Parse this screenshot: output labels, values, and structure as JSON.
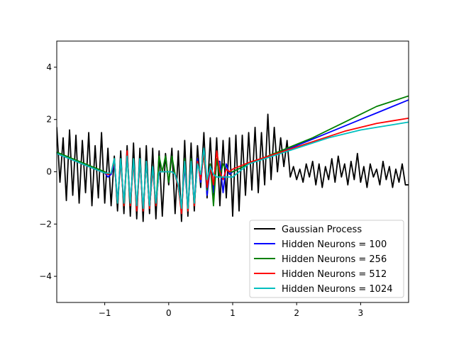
{
  "chart_data": {
    "type": "line",
    "xlim": [
      -1.75,
      3.75
    ],
    "ylim": [
      -5,
      5
    ],
    "x_ticks": [
      -1,
      0,
      1,
      2,
      3
    ],
    "x_tick_labels": [
      "−1",
      "0",
      "1",
      "2",
      "3"
    ],
    "y_ticks": [
      -4,
      -2,
      0,
      2,
      4
    ],
    "y_tick_labels": [
      "−4",
      "−2",
      "0",
      "2",
      "4"
    ],
    "grid": false,
    "legend_position": "lower-right",
    "series": [
      {
        "name": "Gaussian Process",
        "color": "#000000",
        "x": [
          -1.75,
          -1.7,
          -1.65,
          -1.6,
          -1.55,
          -1.5,
          -1.45,
          -1.4,
          -1.35,
          -1.3,
          -1.25,
          -1.2,
          -1.15,
          -1.1,
          -1.05,
          -1.0,
          -0.95,
          -0.9,
          -0.85,
          -0.8,
          -0.75,
          -0.7,
          -0.65,
          -0.6,
          -0.55,
          -0.5,
          -0.45,
          -0.4,
          -0.35,
          -0.3,
          -0.25,
          -0.2,
          -0.15,
          -0.1,
          -0.05,
          0.0,
          0.05,
          0.1,
          0.15,
          0.2,
          0.25,
          0.3,
          0.35,
          0.4,
          0.45,
          0.5,
          0.55,
          0.6,
          0.65,
          0.7,
          0.75,
          0.8,
          0.85,
          0.9,
          0.95,
          1.0,
          1.05,
          1.1,
          1.15,
          1.2,
          1.25,
          1.3,
          1.35,
          1.4,
          1.45,
          1.5,
          1.55,
          1.6,
          1.65,
          1.7,
          1.75,
          1.8,
          1.85,
          1.9,
          1.95,
          2.0,
          2.05,
          2.1,
          2.15,
          2.2,
          2.25,
          2.3,
          2.35,
          2.4,
          2.45,
          2.5,
          2.55,
          2.6,
          2.65,
          2.7,
          2.75,
          2.8,
          2.85,
          2.9,
          2.95,
          3.0,
          3.05,
          3.1,
          3.15,
          3.2,
          3.25,
          3.3,
          3.35,
          3.4,
          3.45,
          3.5,
          3.55,
          3.6,
          3.65,
          3.7,
          3.75
        ],
        "y": [
          1.7,
          -0.4,
          1.3,
          -1.1,
          1.6,
          -0.9,
          1.4,
          -1.2,
          1.2,
          -0.8,
          1.5,
          -1.3,
          1.0,
          -1.0,
          1.5,
          -1.2,
          0.9,
          -1.3,
          0.6,
          -1.5,
          0.8,
          -1.6,
          1.0,
          -1.7,
          1.1,
          -1.8,
          0.9,
          -1.9,
          1.0,
          -1.6,
          0.9,
          -1.8,
          0.8,
          -1.7,
          0.7,
          -0.5,
          0.9,
          -1.6,
          0.8,
          -1.9,
          1.2,
          -1.7,
          1.1,
          -1.5,
          1.0,
          -0.6,
          1.5,
          -1.0,
          1.3,
          -0.9,
          1.3,
          -1.3,
          1.2,
          -1.0,
          1.3,
          -1.7,
          1.4,
          -1.5,
          1.4,
          -0.9,
          1.5,
          -0.7,
          1.7,
          -0.8,
          1.5,
          -0.5,
          2.2,
          -0.3,
          1.7,
          0.0,
          1.3,
          0.2,
          1.2,
          -0.2,
          0.2,
          -0.3,
          0.1,
          -0.4,
          0.3,
          -0.2,
          0.4,
          -0.5,
          0.3,
          -0.6,
          0.2,
          -0.3,
          0.5,
          -0.4,
          0.6,
          -0.2,
          0.3,
          -0.5,
          0.4,
          -0.3,
          0.7,
          -0.4,
          0.2,
          -0.6,
          0.3,
          -0.2,
          0.1,
          -0.5,
          0.4,
          -0.3,
          0.2,
          -0.6,
          0.1,
          -0.4,
          0.3,
          -0.5,
          -0.5
        ]
      },
      {
        "name": "Hidden Neurons = 100",
        "color": "#0000ff",
        "x": [
          -1.75,
          -1.5,
          -1.25,
          -1.0,
          -0.95,
          -0.9,
          -0.85,
          -0.8,
          -0.75,
          -0.7,
          -0.65,
          -0.6,
          -0.55,
          -0.5,
          -0.45,
          -0.4,
          -0.35,
          -0.3,
          -0.25,
          -0.2,
          -0.15,
          -0.1,
          -0.05,
          0.0,
          0.05,
          0.1,
          0.15,
          0.2,
          0.25,
          0.3,
          0.35,
          0.4,
          0.45,
          0.5,
          0.55,
          0.6,
          0.65,
          0.7,
          0.75,
          0.8,
          0.85,
          0.9,
          0.95,
          1.0,
          1.25,
          1.5,
          1.75,
          2.0,
          2.25,
          2.5,
          2.75,
          3.0,
          3.25,
          3.5,
          3.75
        ],
        "y": [
          0.7,
          0.45,
          0.2,
          -0.05,
          -0.2,
          -0.1,
          0.3,
          -1.1,
          0.4,
          -1.2,
          0.7,
          -1.2,
          0.4,
          -1.4,
          0.4,
          -1.5,
          0.4,
          -1.4,
          0.1,
          -1.2,
          0.0,
          0.0,
          0.0,
          0.0,
          0.0,
          -0.1,
          -0.6,
          -1.4,
          0.2,
          -1.4,
          0.4,
          -1.2,
          0.5,
          -0.4,
          0.8,
          -0.9,
          0.2,
          -0.8,
          0.4,
          0.4,
          -0.8,
          0.3,
          -0.1,
          0.0,
          0.3,
          0.55,
          0.75,
          1.0,
          1.25,
          1.5,
          1.75,
          2.0,
          2.25,
          2.5,
          2.75
        ]
      },
      {
        "name": "Hidden Neurons = 256",
        "color": "#008000",
        "x": [
          -1.75,
          -1.5,
          -1.25,
          -1.0,
          -0.95,
          -0.9,
          -0.85,
          -0.8,
          -0.75,
          -0.7,
          -0.65,
          -0.6,
          -0.55,
          -0.5,
          -0.45,
          -0.4,
          -0.35,
          -0.3,
          -0.25,
          -0.2,
          -0.15,
          -0.1,
          -0.05,
          0.0,
          0.05,
          0.1,
          0.15,
          0.2,
          0.25,
          0.3,
          0.35,
          0.4,
          0.45,
          0.5,
          0.55,
          0.6,
          0.65,
          0.7,
          0.75,
          0.8,
          0.85,
          0.9,
          0.95,
          1.0,
          1.25,
          1.5,
          1.75,
          2.0,
          2.25,
          2.5,
          2.75,
          3.0,
          3.25,
          3.5,
          3.75
        ],
        "y": [
          0.75,
          0.5,
          0.25,
          0.0,
          -0.1,
          -0.05,
          0.5,
          -1.2,
          0.5,
          -1.3,
          0.6,
          -1.3,
          0.5,
          -1.4,
          0.5,
          -1.5,
          0.4,
          -1.4,
          0.2,
          -1.3,
          0.6,
          0.0,
          0.6,
          -0.4,
          0.6,
          -0.1,
          -0.6,
          -1.5,
          0.5,
          -1.5,
          0.5,
          -1.3,
          0.4,
          -0.2,
          0.7,
          -0.7,
          0.3,
          -1.3,
          0.5,
          -0.2,
          0.3,
          0.1,
          0.0,
          0.0,
          0.3,
          0.55,
          0.8,
          1.05,
          1.3,
          1.6,
          1.9,
          2.2,
          2.5,
          2.7,
          2.9
        ]
      },
      {
        "name": "Hidden Neurons = 512",
        "color": "#ff0000",
        "x": [
          -1.75,
          -1.5,
          -1.25,
          -1.0,
          -0.95,
          -0.9,
          -0.85,
          -0.8,
          -0.75,
          -0.7,
          -0.65,
          -0.6,
          -0.55,
          -0.5,
          -0.45,
          -0.4,
          -0.35,
          -0.3,
          -0.25,
          -0.2,
          -0.15,
          -0.1,
          -0.05,
          0.0,
          0.05,
          0.1,
          0.15,
          0.2,
          0.25,
          0.3,
          0.35,
          0.4,
          0.45,
          0.5,
          0.55,
          0.6,
          0.65,
          0.7,
          0.75,
          0.8,
          0.85,
          0.9,
          0.95,
          1.0,
          1.25,
          1.5,
          1.75,
          2.0,
          2.25,
          2.5,
          2.75,
          3.0,
          3.25,
          3.5,
          3.75
        ],
        "y": [
          0.7,
          0.45,
          0.2,
          -0.05,
          -0.1,
          -0.05,
          0.4,
          -1.2,
          0.4,
          -1.3,
          0.8,
          -1.3,
          0.4,
          -1.5,
          0.4,
          -1.5,
          0.4,
          -1.4,
          0.1,
          -1.3,
          0.0,
          0.0,
          0.0,
          0.0,
          0.0,
          -0.1,
          -0.6,
          -1.6,
          0.4,
          -1.5,
          0.4,
          -1.3,
          0.4,
          -0.3,
          0.8,
          -0.6,
          0.2,
          -0.5,
          0.8,
          0.0,
          -0.3,
          0.1,
          0.0,
          0.1,
          0.35,
          0.55,
          0.75,
          0.95,
          1.15,
          1.35,
          1.55,
          1.7,
          1.85,
          1.95,
          2.05
        ]
      },
      {
        "name": "Hidden Neurons = 1024",
        "color": "#00bfbf",
        "x": [
          -1.75,
          -1.5,
          -1.25,
          -1.0,
          -0.95,
          -0.9,
          -0.85,
          -0.8,
          -0.75,
          -0.7,
          -0.65,
          -0.6,
          -0.55,
          -0.5,
          -0.45,
          -0.4,
          -0.35,
          -0.3,
          -0.25,
          -0.2,
          -0.15,
          -0.1,
          -0.05,
          0.0,
          0.05,
          0.1,
          0.15,
          0.2,
          0.25,
          0.3,
          0.35,
          0.4,
          0.45,
          0.5,
          0.55,
          0.6,
          0.65,
          0.7,
          0.75,
          0.8,
          0.85,
          0.9,
          0.95,
          1.0,
          1.25,
          1.5,
          1.75,
          2.0,
          2.25,
          2.5,
          2.75,
          3.0,
          3.25,
          3.5,
          3.75
        ],
        "y": [
          0.7,
          0.45,
          0.2,
          -0.05,
          -0.05,
          -0.05,
          0.5,
          -1.2,
          0.5,
          -1.2,
          0.6,
          -1.2,
          0.5,
          -1.3,
          0.5,
          -1.4,
          0.4,
          -1.3,
          0.2,
          -1.2,
          0.0,
          0.0,
          0.0,
          0.0,
          0.0,
          -0.1,
          -0.5,
          -1.4,
          0.4,
          -1.4,
          0.4,
          -1.2,
          0.3,
          -0.1,
          0.9,
          -0.3,
          0.2,
          -0.1,
          -0.2,
          -0.2,
          -0.2,
          -0.2,
          -0.2,
          -0.2,
          0.3,
          0.5,
          0.7,
          0.9,
          1.1,
          1.3,
          1.45,
          1.6,
          1.7,
          1.8,
          1.9
        ]
      }
    ]
  }
}
